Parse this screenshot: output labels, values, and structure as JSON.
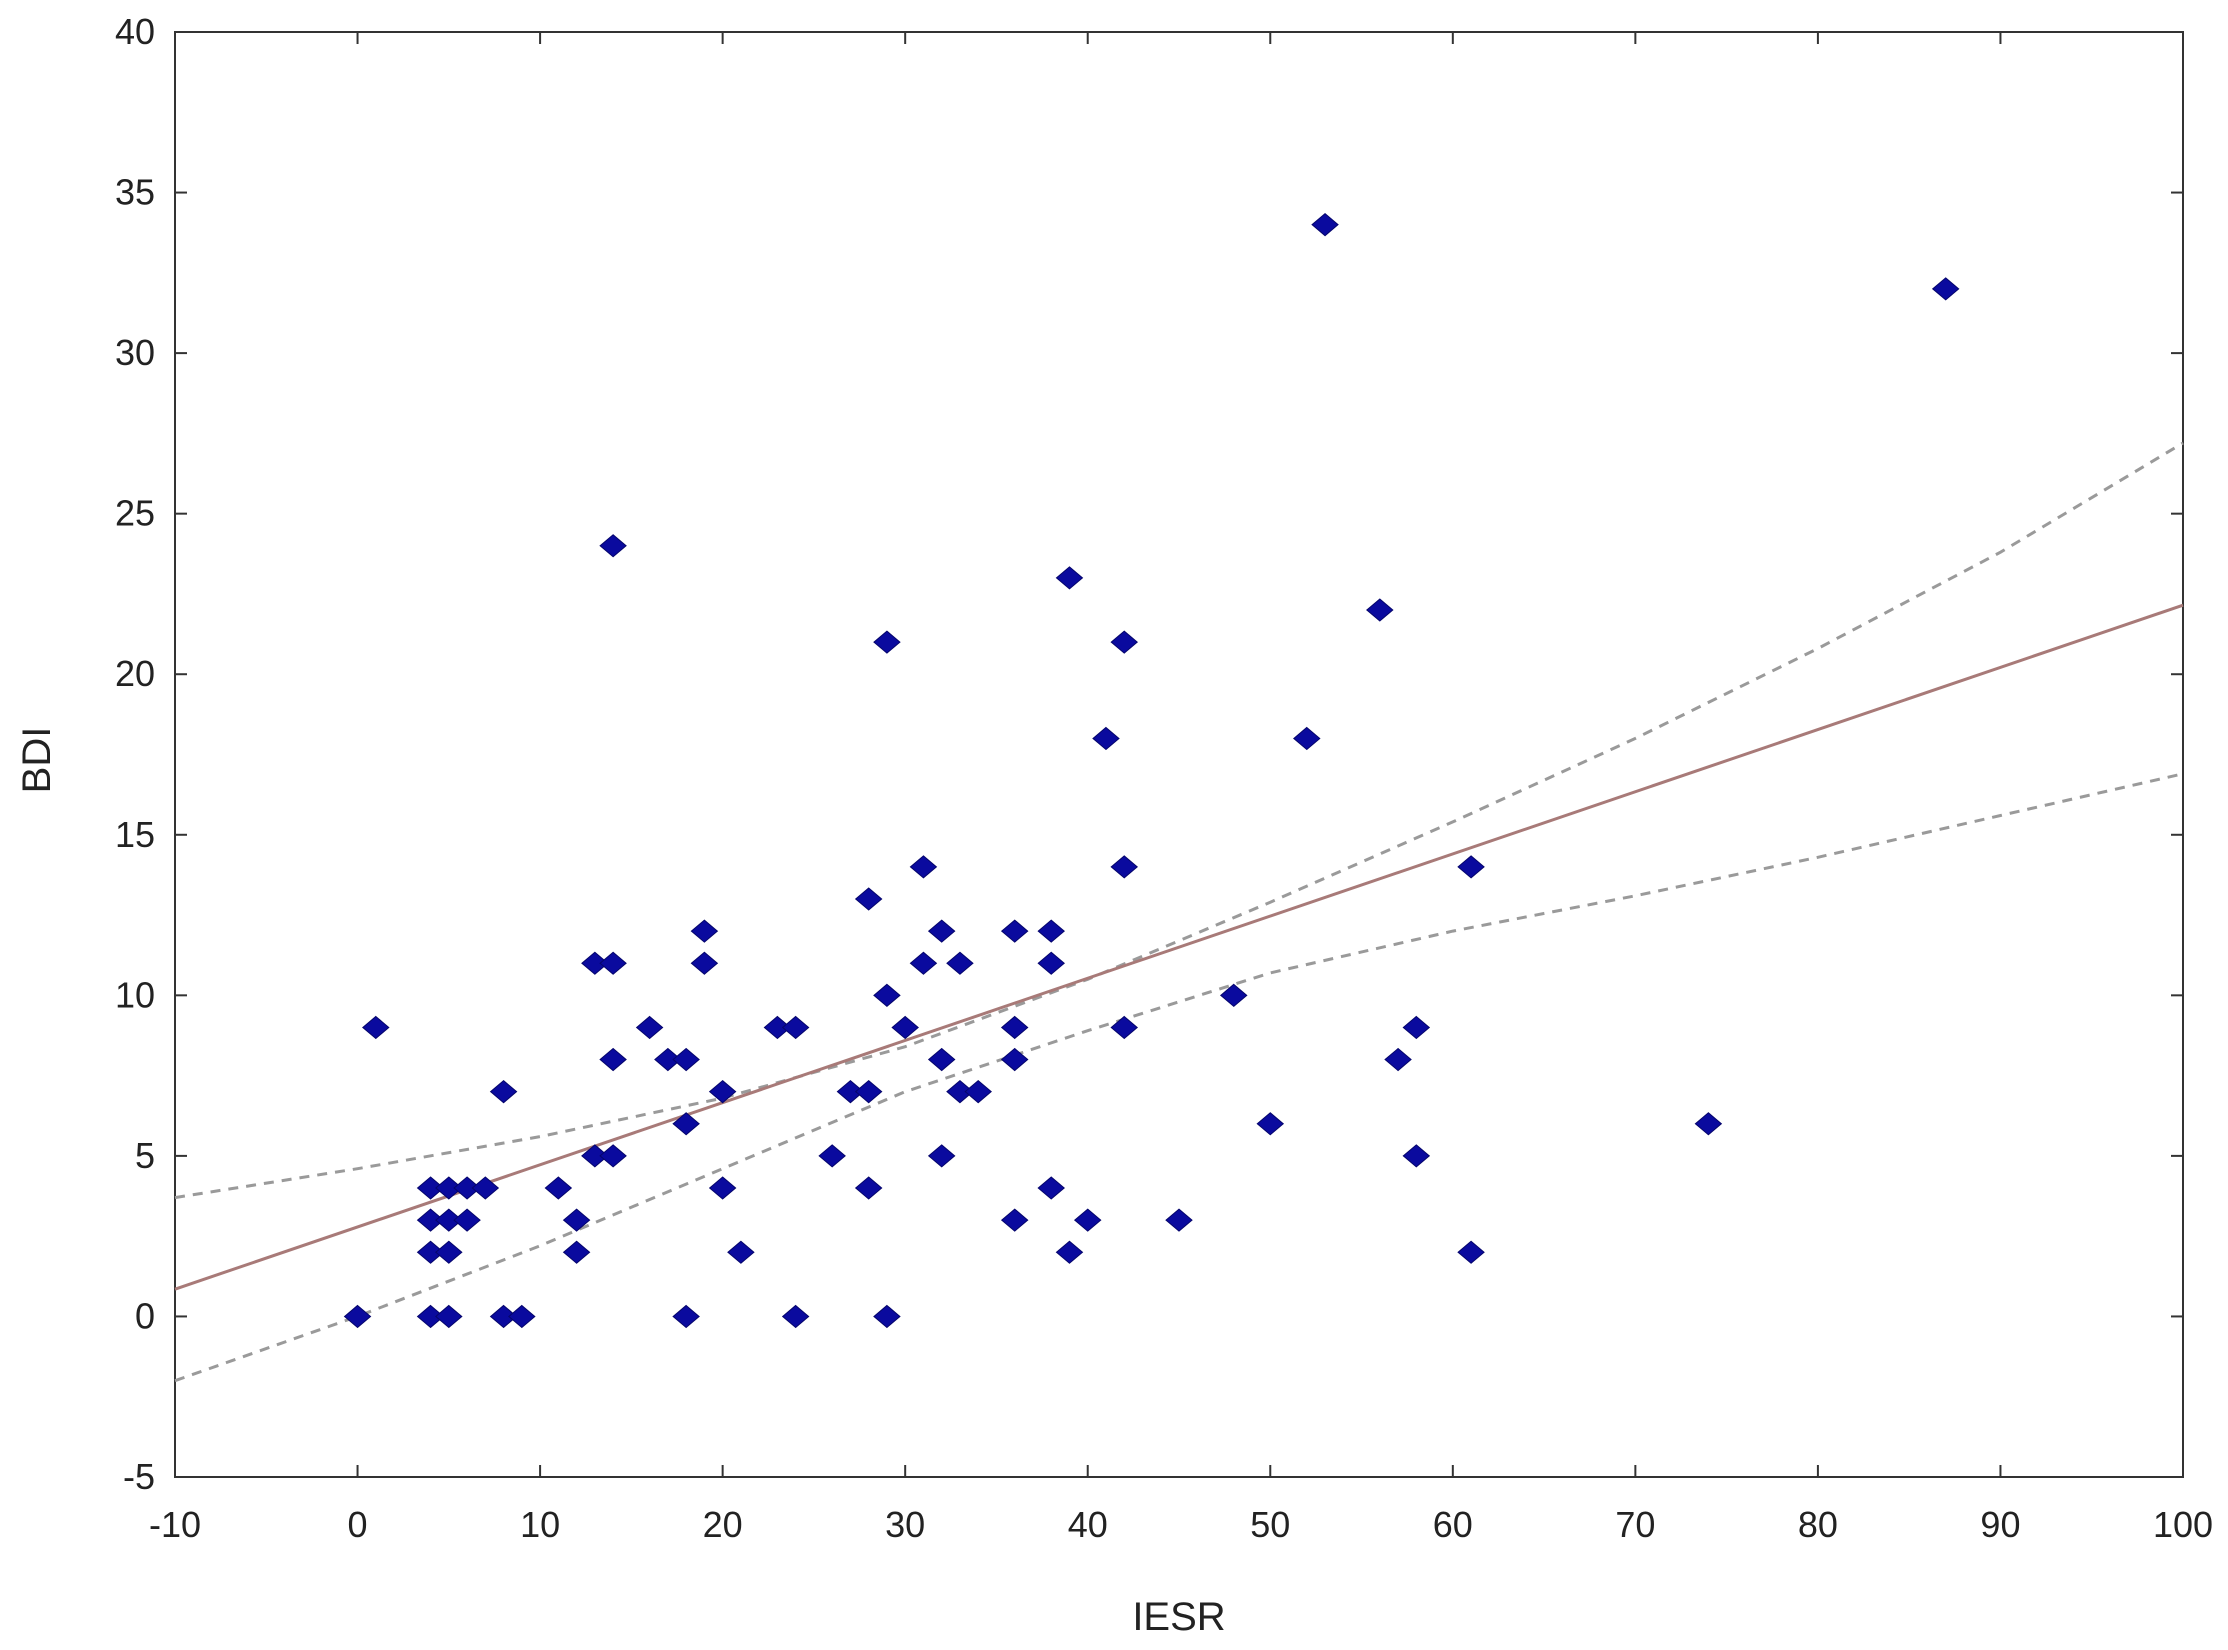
{
  "chart_data": {
    "type": "scatter",
    "title": "",
    "xlabel": "IESR",
    "ylabel": "BDI",
    "xlim": [
      -10,
      100
    ],
    "ylim": [
      -5,
      40
    ],
    "xticks": [
      -10,
      0,
      10,
      20,
      30,
      40,
      50,
      60,
      70,
      80,
      90,
      100
    ],
    "yticks": [
      -5,
      0,
      5,
      10,
      15,
      20,
      25,
      30,
      35,
      40
    ],
    "grid": false,
    "series": [
      {
        "marker": "diamond",
        "color": "#0a0a9e",
        "x": [
          0,
          1,
          4,
          4,
          4,
          4,
          5,
          5,
          5,
          5,
          6,
          6,
          7,
          8,
          8,
          9,
          11,
          12,
          12,
          13,
          13,
          14,
          14,
          14,
          14,
          16,
          17,
          18,
          18,
          18,
          19,
          19,
          20,
          20,
          21,
          23,
          24,
          24,
          26,
          27,
          28,
          28,
          28,
          29,
          29,
          29,
          30,
          31,
          31,
          32,
          32,
          32,
          33,
          33,
          34,
          36,
          36,
          36,
          36,
          38,
          38,
          38,
          39,
          39,
          40,
          41,
          42,
          42,
          42,
          45,
          48,
          50,
          52,
          53,
          56,
          57,
          58,
          58,
          61,
          61,
          74,
          87
        ],
        "y": [
          0,
          9,
          4,
          3,
          2,
          0,
          4,
          3,
          2,
          0,
          4,
          3,
          4,
          7,
          0,
          0,
          4,
          3,
          2,
          11,
          5,
          24,
          11,
          8,
          5,
          9,
          8,
          8,
          6,
          0,
          12,
          11,
          7,
          4,
          2,
          9,
          9,
          0,
          5,
          7,
          13,
          7,
          4,
          21,
          10,
          0,
          9,
          14,
          11,
          12,
          8,
          5,
          11,
          7,
          7,
          12,
          9,
          8,
          3,
          12,
          11,
          4,
          23,
          2,
          3,
          18,
          21,
          14,
          9,
          3,
          10,
          6,
          18,
          34,
          22,
          8,
          9,
          5,
          14,
          2,
          6,
          32
        ]
      }
    ],
    "fit_line": {
      "style": "solid",
      "color": "#a87a78",
      "x": [
        -10,
        100
      ],
      "y": [
        0.85,
        22.15
      ]
    },
    "confidence_band": {
      "style": "dashed",
      "color": "#9a9a9a",
      "upper": {
        "x": [
          -10,
          0,
          10,
          20,
          30,
          40,
          50,
          60,
          70,
          80,
          90,
          100
        ],
        "y": [
          3.7,
          4.6,
          5.6,
          6.8,
          8.4,
          10.5,
          12.9,
          15.4,
          18.0,
          20.8,
          23.8,
          27.2
        ]
      },
      "lower": {
        "x": [
          -10,
          0,
          10,
          20,
          30,
          40,
          50,
          60,
          70,
          80,
          90,
          100
        ],
        "y": [
          -2.0,
          0.0,
          2.2,
          4.6,
          7.0,
          8.9,
          10.7,
          12.0,
          13.1,
          14.3,
          15.6,
          16.9
        ]
      }
    }
  }
}
